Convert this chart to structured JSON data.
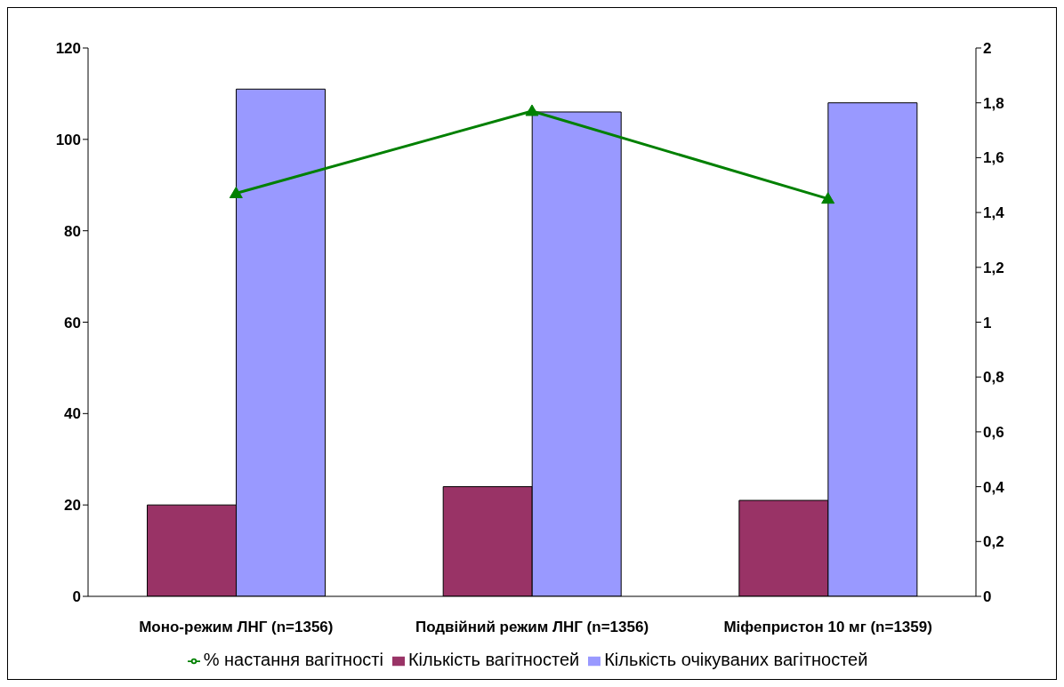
{
  "chart_data": {
    "type": "bar",
    "categories": [
      "Моно-режим ЛНГ (n=1356)",
      "Подвійний режим ЛНГ (n=1356)",
      "Міфепристон 10 мг (n=1359)"
    ],
    "series": [
      {
        "name": "Кількість вагітностей",
        "color": "#993366",
        "values": [
          20,
          24,
          21
        ]
      },
      {
        "name": "Кількість очікуваних вагітностей",
        "color": "#9999ff",
        "values": [
          111,
          106,
          108
        ]
      },
      {
        "name": "% настання вагітності",
        "color": "#008000",
        "type": "line",
        "axis": "y2",
        "values": [
          1.47,
          1.77,
          1.45
        ]
      }
    ],
    "ylim": [
      0,
      120
    ],
    "yticks": [
      0,
      20,
      40,
      60,
      80,
      100,
      120
    ],
    "y2lim": [
      0,
      2
    ],
    "y2ticks": [
      0,
      {
        "value": 0.2,
        "label": "0,2"
      },
      {
        "value": 0.4,
        "label": "0,4"
      },
      {
        "value": 0.6,
        "label": "0,6"
      },
      {
        "value": 0.8,
        "label": "0,8"
      },
      1,
      {
        "value": 1.2,
        "label": "1,2"
      },
      {
        "value": 1.4,
        "label": "1,4"
      },
      {
        "value": 1.6,
        "label": "1,6"
      },
      {
        "value": 1.8,
        "label": "1,8"
      },
      2
    ],
    "grid": false,
    "legend": "bottom",
    "marker": "triangle",
    "line_style": "solid"
  }
}
